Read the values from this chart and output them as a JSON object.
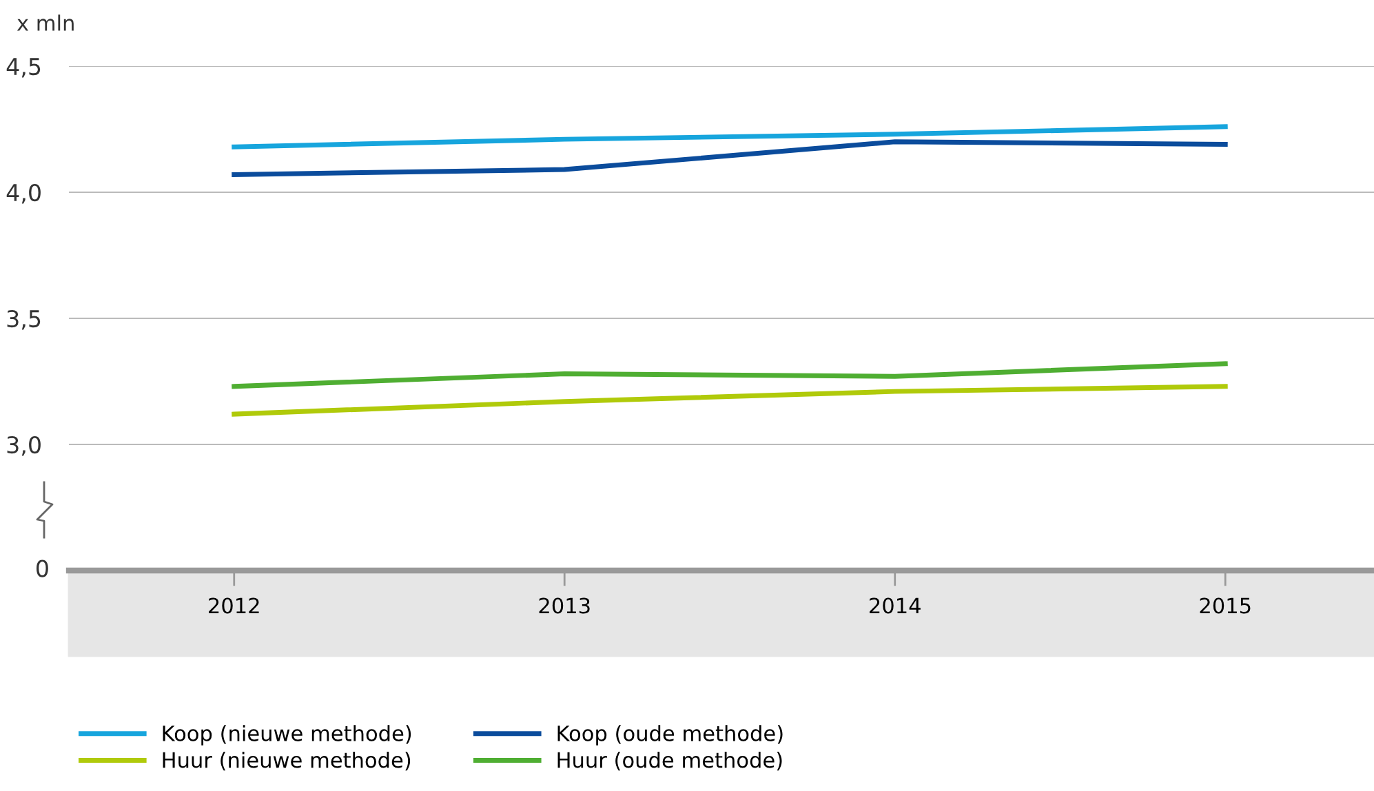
{
  "chart_data": {
    "type": "line",
    "ylabel": "x mln",
    "categories": [
      "2012",
      "2013",
      "2014",
      "2015"
    ],
    "series": [
      {
        "name": "Koop (nieuwe methode)",
        "color": "#17a5dd",
        "values": [
          4.18,
          4.21,
          4.23,
          4.26
        ]
      },
      {
        "name": "Huur (nieuwe methode)",
        "color": "#b0ca0a",
        "values": [
          3.12,
          3.17,
          3.21,
          3.23
        ]
      },
      {
        "name": "Koop (oude methode)",
        "color": "#0b4c9c",
        "values": [
          4.07,
          4.09,
          4.2,
          4.19
        ]
      },
      {
        "name": "Huur (oude methode)",
        "color": "#4fae32",
        "values": [
          3.23,
          3.28,
          3.27,
          3.32
        ]
      }
    ],
    "ylim": [
      2.5,
      4.5
    ],
    "annotations": [
      "0"
    ],
    "yticks": [
      {
        "value": 3.0,
        "label": "3,0"
      },
      {
        "value": 3.5,
        "label": "3,5"
      },
      {
        "value": 4.0,
        "label": "4,0"
      },
      {
        "value": 4.5,
        "label": "4,5"
      }
    ],
    "grid": "y",
    "legend": "bottom",
    "marker": "none",
    "line_style": "solid"
  }
}
